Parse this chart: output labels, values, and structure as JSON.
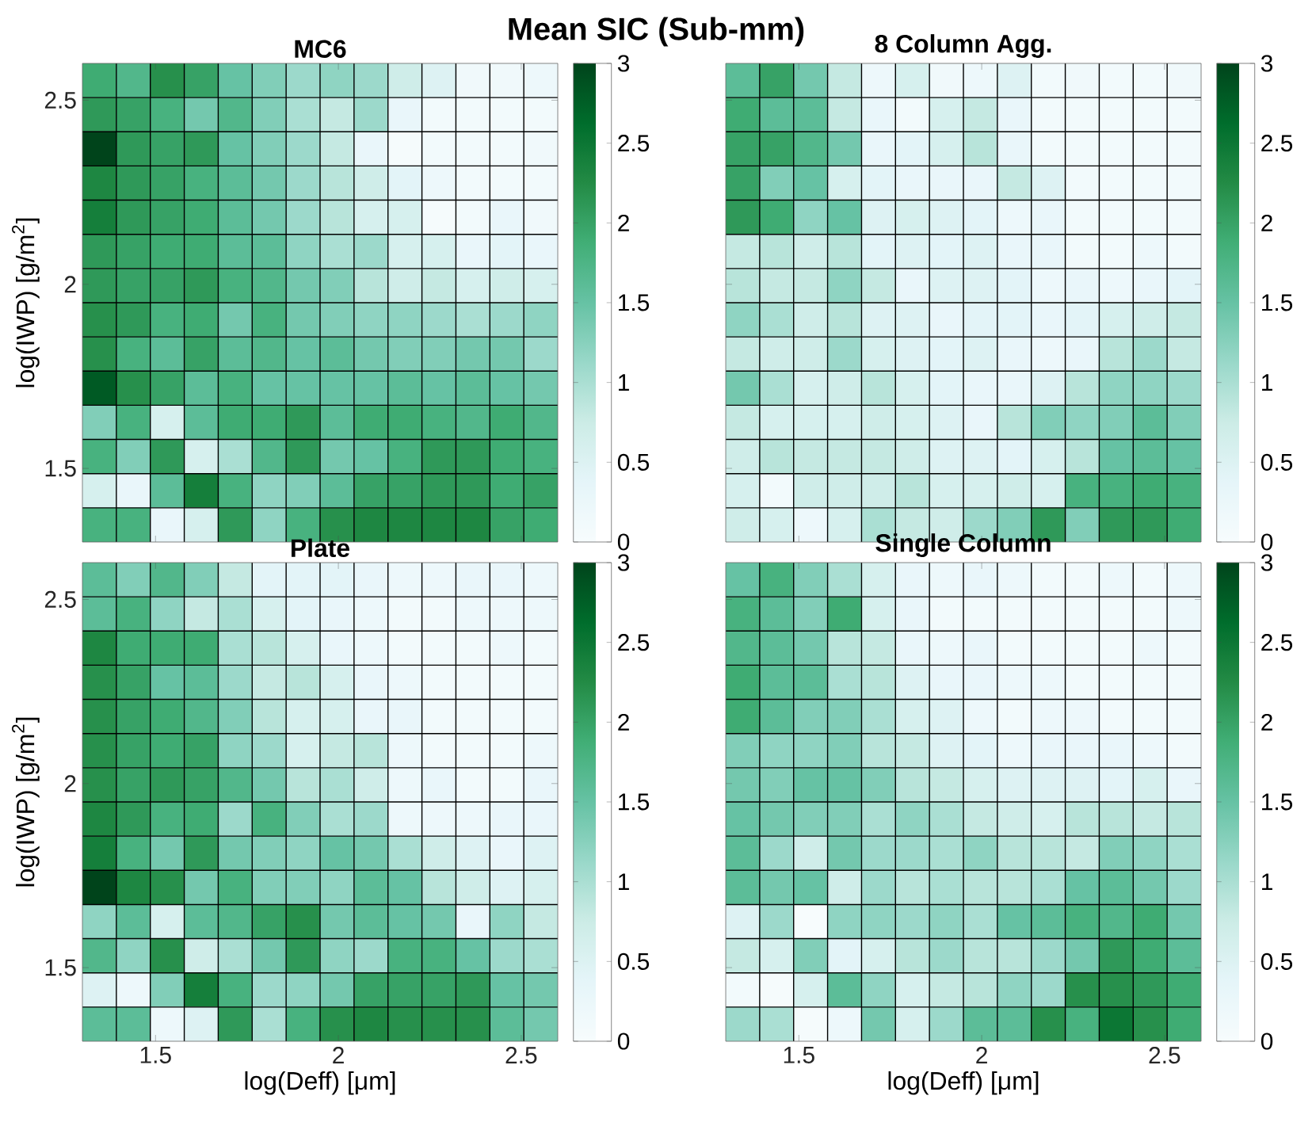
{
  "chart_data": [
    {
      "type": "heatmap",
      "title": "MC6",
      "ylabel": "log(IWP) [g/m$^{2}$]",
      "annotations": [
        "Mean SIC (Sub-mm)"
      ],
      "tick_labels": "y",
      "xlim": [
        1.3,
        2.6
      ],
      "ylim": [
        1.3,
        2.6
      ],
      "xticks": [
        1.5,
        2,
        2.5
      ],
      "yticks": [
        1.5,
        2,
        2.5
      ],
      "clim": [
        0,
        3
      ],
      "cticks": [
        0,
        0.5,
        1,
        1.5,
        2,
        2.5,
        3
      ],
      "cells": [
        [
          1.9,
          1.7,
          2.2,
          2.0,
          1.5,
          1.3,
          1.1,
          1.2,
          1.1,
          0.7,
          0.5,
          0.15,
          0.15,
          0.2
        ],
        [
          2.1,
          2.0,
          1.8,
          1.4,
          1.7,
          1.3,
          1.0,
          0.8,
          1.1,
          0.3,
          0.1,
          0.1,
          0.1,
          0.1
        ],
        [
          3.0,
          2.1,
          2.0,
          2.1,
          1.5,
          1.3,
          1.1,
          0.8,
          0.3,
          0.05,
          0.1,
          0.1,
          0.1,
          0.15
        ],
        [
          2.3,
          2.1,
          2.0,
          1.8,
          1.6,
          1.4,
          1.1,
          0.9,
          0.7,
          0.4,
          0.2,
          0.1,
          0.1,
          0.1
        ],
        [
          2.4,
          2.1,
          2.0,
          1.9,
          1.6,
          1.4,
          1.1,
          0.9,
          0.6,
          0.6,
          0.05,
          0.1,
          0.3,
          0.15
        ],
        [
          2.1,
          2.0,
          1.9,
          1.9,
          1.6,
          1.6,
          1.2,
          1.0,
          1.1,
          0.6,
          0.6,
          0.3,
          0.4,
          0.3
        ],
        [
          2.1,
          2.0,
          2.0,
          2.1,
          1.8,
          1.7,
          1.4,
          1.3,
          0.9,
          0.7,
          0.8,
          0.6,
          0.7,
          0.6
        ],
        [
          2.2,
          2.1,
          1.8,
          1.9,
          1.4,
          1.8,
          1.4,
          1.3,
          1.2,
          1.2,
          1.1,
          1.0,
          1.1,
          1.2
        ],
        [
          2.2,
          1.8,
          1.6,
          2.0,
          1.6,
          1.7,
          1.5,
          1.6,
          1.4,
          1.3,
          1.3,
          1.4,
          1.4,
          1.1
        ],
        [
          2.8,
          2.2,
          2.0,
          1.6,
          1.8,
          1.5,
          1.5,
          1.5,
          1.5,
          1.6,
          1.5,
          1.6,
          1.5,
          1.4
        ],
        [
          1.3,
          1.8,
          0.6,
          1.6,
          1.9,
          1.9,
          2.1,
          1.6,
          1.9,
          1.9,
          1.8,
          1.7,
          1.9,
          1.7
        ],
        [
          1.8,
          1.3,
          2.1,
          0.6,
          1.0,
          1.7,
          2.1,
          1.4,
          1.5,
          1.8,
          2.1,
          2.1,
          1.9,
          1.8
        ],
        [
          0.6,
          0.3,
          1.6,
          2.4,
          1.8,
          1.2,
          1.3,
          1.6,
          2.0,
          2.0,
          2.1,
          2.1,
          1.9,
          2.0
        ],
        [
          1.8,
          1.8,
          0.3,
          0.6,
          2.1,
          1.2,
          1.8,
          2.2,
          2.3,
          2.3,
          2.3,
          2.3,
          2.0,
          1.9
        ]
      ]
    },
    {
      "type": "heatmap",
      "title": "8 Column Agg.",
      "tick_labels": false,
      "xlim": [
        1.3,
        2.6
      ],
      "ylim": [
        1.3,
        2.6
      ],
      "xticks": [
        1.5,
        2,
        2.5
      ],
      "yticks": [
        1.5,
        2,
        2.5
      ],
      "clim": [
        0,
        3
      ],
      "cticks": [
        0,
        0.5,
        1,
        1.5,
        2,
        2.5,
        3
      ],
      "cells": [
        [
          1.6,
          2.0,
          1.4,
          0.8,
          0.2,
          0.6,
          0.15,
          0.2,
          0.5,
          0.1,
          0.15,
          0.1,
          0.1,
          0.15
        ],
        [
          1.9,
          1.6,
          1.6,
          0.8,
          0.3,
          0.1,
          0.6,
          0.8,
          0.3,
          0.1,
          0.1,
          0.1,
          0.1,
          0.1
        ],
        [
          2.0,
          2.0,
          1.7,
          1.4,
          0.3,
          0.4,
          0.6,
          0.9,
          0.3,
          0.1,
          0.1,
          0.1,
          0.1,
          0.1
        ],
        [
          2.0,
          1.3,
          1.5,
          0.6,
          0.4,
          0.3,
          0.3,
          0.3,
          0.8,
          0.5,
          0.1,
          0.1,
          0.1,
          0.1
        ],
        [
          2.1,
          1.9,
          1.2,
          1.5,
          0.5,
          0.6,
          0.5,
          0.4,
          0.2,
          0.3,
          0.1,
          0.1,
          0.1,
          0.1
        ],
        [
          0.8,
          0.9,
          0.7,
          0.9,
          0.4,
          0.5,
          0.4,
          0.5,
          0.3,
          0.3,
          0.1,
          0.1,
          0.2,
          0.1
        ],
        [
          0.9,
          0.8,
          0.8,
          1.2,
          0.8,
          0.3,
          0.5,
          0.5,
          0.4,
          0.2,
          0.3,
          0.2,
          0.3,
          0.4
        ],
        [
          1.2,
          1.0,
          0.7,
          0.9,
          0.5,
          0.5,
          0.3,
          0.4,
          0.4,
          0.3,
          0.4,
          0.6,
          0.7,
          0.8
        ],
        [
          0.8,
          0.7,
          0.7,
          1.1,
          0.6,
          0.5,
          0.4,
          0.5,
          0.3,
          0.2,
          0.3,
          0.9,
          1.1,
          0.8
        ],
        [
          1.4,
          1.0,
          0.6,
          0.7,
          0.9,
          0.6,
          0.4,
          0.3,
          0.3,
          0.5,
          0.9,
          1.2,
          1.2,
          1.1
        ],
        [
          0.8,
          0.6,
          0.6,
          0.6,
          0.7,
          0.6,
          0.5,
          0.3,
          0.9,
          1.3,
          1.2,
          1.3,
          1.6,
          1.3
        ],
        [
          0.7,
          0.9,
          0.8,
          0.8,
          0.8,
          0.7,
          0.5,
          0.5,
          0.4,
          0.6,
          0.9,
          1.5,
          1.6,
          1.5
        ],
        [
          0.6,
          0.1,
          0.7,
          0.7,
          0.7,
          0.9,
          0.6,
          0.6,
          0.7,
          0.6,
          1.8,
          1.8,
          1.9,
          1.8
        ],
        [
          0.7,
          0.6,
          0.2,
          0.6,
          1.0,
          0.8,
          0.7,
          1.1,
          1.3,
          2.1,
          1.3,
          2.1,
          2.1,
          1.9
        ]
      ]
    },
    {
      "type": "heatmap",
      "title": "Plate",
      "xlabel": "log(Deff) [μm]",
      "ylabel": "log(IWP) [g/m$^{2}$]",
      "xlim": [
        1.3,
        2.6
      ],
      "ylim": [
        1.3,
        2.6
      ],
      "xticks": [
        1.5,
        2,
        2.5
      ],
      "yticks": [
        1.5,
        2,
        2.5
      ],
      "clim": [
        0,
        3
      ],
      "cticks": [
        0,
        0.5,
        1,
        1.5,
        2,
        2.5,
        3
      ],
      "cells": [
        [
          1.6,
          1.3,
          1.7,
          1.3,
          0.8,
          0.4,
          0.4,
          0.4,
          0.3,
          0.2,
          0.2,
          0.3,
          0.3,
          0.2
        ],
        [
          1.6,
          1.8,
          1.2,
          0.8,
          1.0,
          0.6,
          0.4,
          0.3,
          0.2,
          0.1,
          0.1,
          0.2,
          0.2,
          0.2
        ],
        [
          2.3,
          1.9,
          1.9,
          1.9,
          1.0,
          0.9,
          0.6,
          0.3,
          0.2,
          0.1,
          0.1,
          0.1,
          0.2,
          0.1
        ],
        [
          2.2,
          2.0,
          1.5,
          1.6,
          1.1,
          0.8,
          0.9,
          0.6,
          0.3,
          0.2,
          0.1,
          0.1,
          0.1,
          0.1
        ],
        [
          2.2,
          2.0,
          1.9,
          1.7,
          1.3,
          0.9,
          0.6,
          0.6,
          0.3,
          0.3,
          0.1,
          0.1,
          0.1,
          0.1
        ],
        [
          2.2,
          2.0,
          1.9,
          2.0,
          1.2,
          1.1,
          0.6,
          0.8,
          0.9,
          0.2,
          0.1,
          0.1,
          0.1,
          0.2
        ],
        [
          2.2,
          2.0,
          2.1,
          2.0,
          1.7,
          1.4,
          0.9,
          1.0,
          0.7,
          0.2,
          0.3,
          0.1,
          0.1,
          0.3
        ],
        [
          2.3,
          2.1,
          1.8,
          1.9,
          1.1,
          1.8,
          1.3,
          1.0,
          1.1,
          0.2,
          0.2,
          0.2,
          0.3,
          0.3
        ],
        [
          2.4,
          1.8,
          1.4,
          2.1,
          1.4,
          1.3,
          1.2,
          1.5,
          1.4,
          1.0,
          0.7,
          0.5,
          0.3,
          0.5
        ],
        [
          3.0,
          2.3,
          2.2,
          1.4,
          1.8,
          1.3,
          1.3,
          1.2,
          1.6,
          1.5,
          0.9,
          0.7,
          0.5,
          0.6
        ],
        [
          1.2,
          1.6,
          0.6,
          1.6,
          1.7,
          2.0,
          2.2,
          1.4,
          1.6,
          1.5,
          1.4,
          0.3,
          1.2,
          0.8
        ],
        [
          1.7,
          1.2,
          2.2,
          0.7,
          1.0,
          1.4,
          2.1,
          1.2,
          1.1,
          1.8,
          1.8,
          1.5,
          1.1,
          1.0
        ],
        [
          0.5,
          0.2,
          1.3,
          2.4,
          1.8,
          1.1,
          1.2,
          1.4,
          2.0,
          2.0,
          2.0,
          2.1,
          1.5,
          1.4
        ],
        [
          1.6,
          1.6,
          0.2,
          0.5,
          2.1,
          1.0,
          1.8,
          2.2,
          2.3,
          2.2,
          2.2,
          2.2,
          1.6,
          1.4
        ]
      ]
    },
    {
      "type": "heatmap",
      "title": "Single Column",
      "xlabel": "log(Deff) [μm]",
      "tick_labels": "x",
      "xlim": [
        1.3,
        2.6
      ],
      "ylim": [
        1.3,
        2.6
      ],
      "xticks": [
        1.5,
        2,
        2.5
      ],
      "yticks": [
        1.5,
        2,
        2.5
      ],
      "clim": [
        0,
        3
      ],
      "cticks": [
        0,
        0.5,
        1,
        1.5,
        2,
        2.5,
        3
      ],
      "cells": [
        [
          1.5,
          1.8,
          1.3,
          1.0,
          0.6,
          0.3,
          0.2,
          0.3,
          0.2,
          0.1,
          0.1,
          0.2,
          0.1,
          0.2
        ],
        [
          1.8,
          1.6,
          1.3,
          1.9,
          0.6,
          0.3,
          0.1,
          0.1,
          0.1,
          0.1,
          0.1,
          0.1,
          0.1,
          0.2
        ],
        [
          1.7,
          1.6,
          1.4,
          0.9,
          0.8,
          0.3,
          0.2,
          0.3,
          0.1,
          0.1,
          0.1,
          0.1,
          0.2,
          0.1
        ],
        [
          1.9,
          1.6,
          1.6,
          1.0,
          0.9,
          0.5,
          0.3,
          0.3,
          0.2,
          0.2,
          0.1,
          0.1,
          0.1,
          0.1
        ],
        [
          1.9,
          1.6,
          1.3,
          1.3,
          1.0,
          0.6,
          0.5,
          0.2,
          0.1,
          0.2,
          0.2,
          0.1,
          0.1,
          0.1
        ],
        [
          1.3,
          1.2,
          1.2,
          1.3,
          0.9,
          0.8,
          0.5,
          0.4,
          0.2,
          0.3,
          0.3,
          0.3,
          0.2,
          0.1
        ],
        [
          1.4,
          1.3,
          1.5,
          1.5,
          1.3,
          0.9,
          0.8,
          0.6,
          0.5,
          0.5,
          0.5,
          0.4,
          0.6,
          0.3
        ],
        [
          1.5,
          1.4,
          1.3,
          1.3,
          1.0,
          1.2,
          1.0,
          0.8,
          0.7,
          0.6,
          0.9,
          0.9,
          0.8,
          0.9
        ],
        [
          1.6,
          1.1,
          0.7,
          1.4,
          1.1,
          1.1,
          1.0,
          1.2,
          0.9,
          0.9,
          0.8,
          1.3,
          1.2,
          1.0
        ],
        [
          1.6,
          1.4,
          1.5,
          0.7,
          1.1,
          0.9,
          1.0,
          0.9,
          0.9,
          1.0,
          1.5,
          1.6,
          1.4,
          1.1
        ],
        [
          0.5,
          1.1,
          0.0,
          1.2,
          1.2,
          1.1,
          1.2,
          1.0,
          1.5,
          1.6,
          1.8,
          1.7,
          1.9,
          1.4
        ],
        [
          0.8,
          0.6,
          1.3,
          0.4,
          0.6,
          0.9,
          1.1,
          0.9,
          0.9,
          1.1,
          1.4,
          2.1,
          1.9,
          1.6
        ],
        [
          0.1,
          0.05,
          0.6,
          1.6,
          1.2,
          0.6,
          0.8,
          0.9,
          1.2,
          1.1,
          2.2,
          2.2,
          2.1,
          1.9
        ],
        [
          1.1,
          1.0,
          0.05,
          0.2,
          1.4,
          0.6,
          1.1,
          1.6,
          1.6,
          2.2,
          1.8,
          2.5,
          2.2,
          1.9
        ]
      ]
    }
  ]
}
